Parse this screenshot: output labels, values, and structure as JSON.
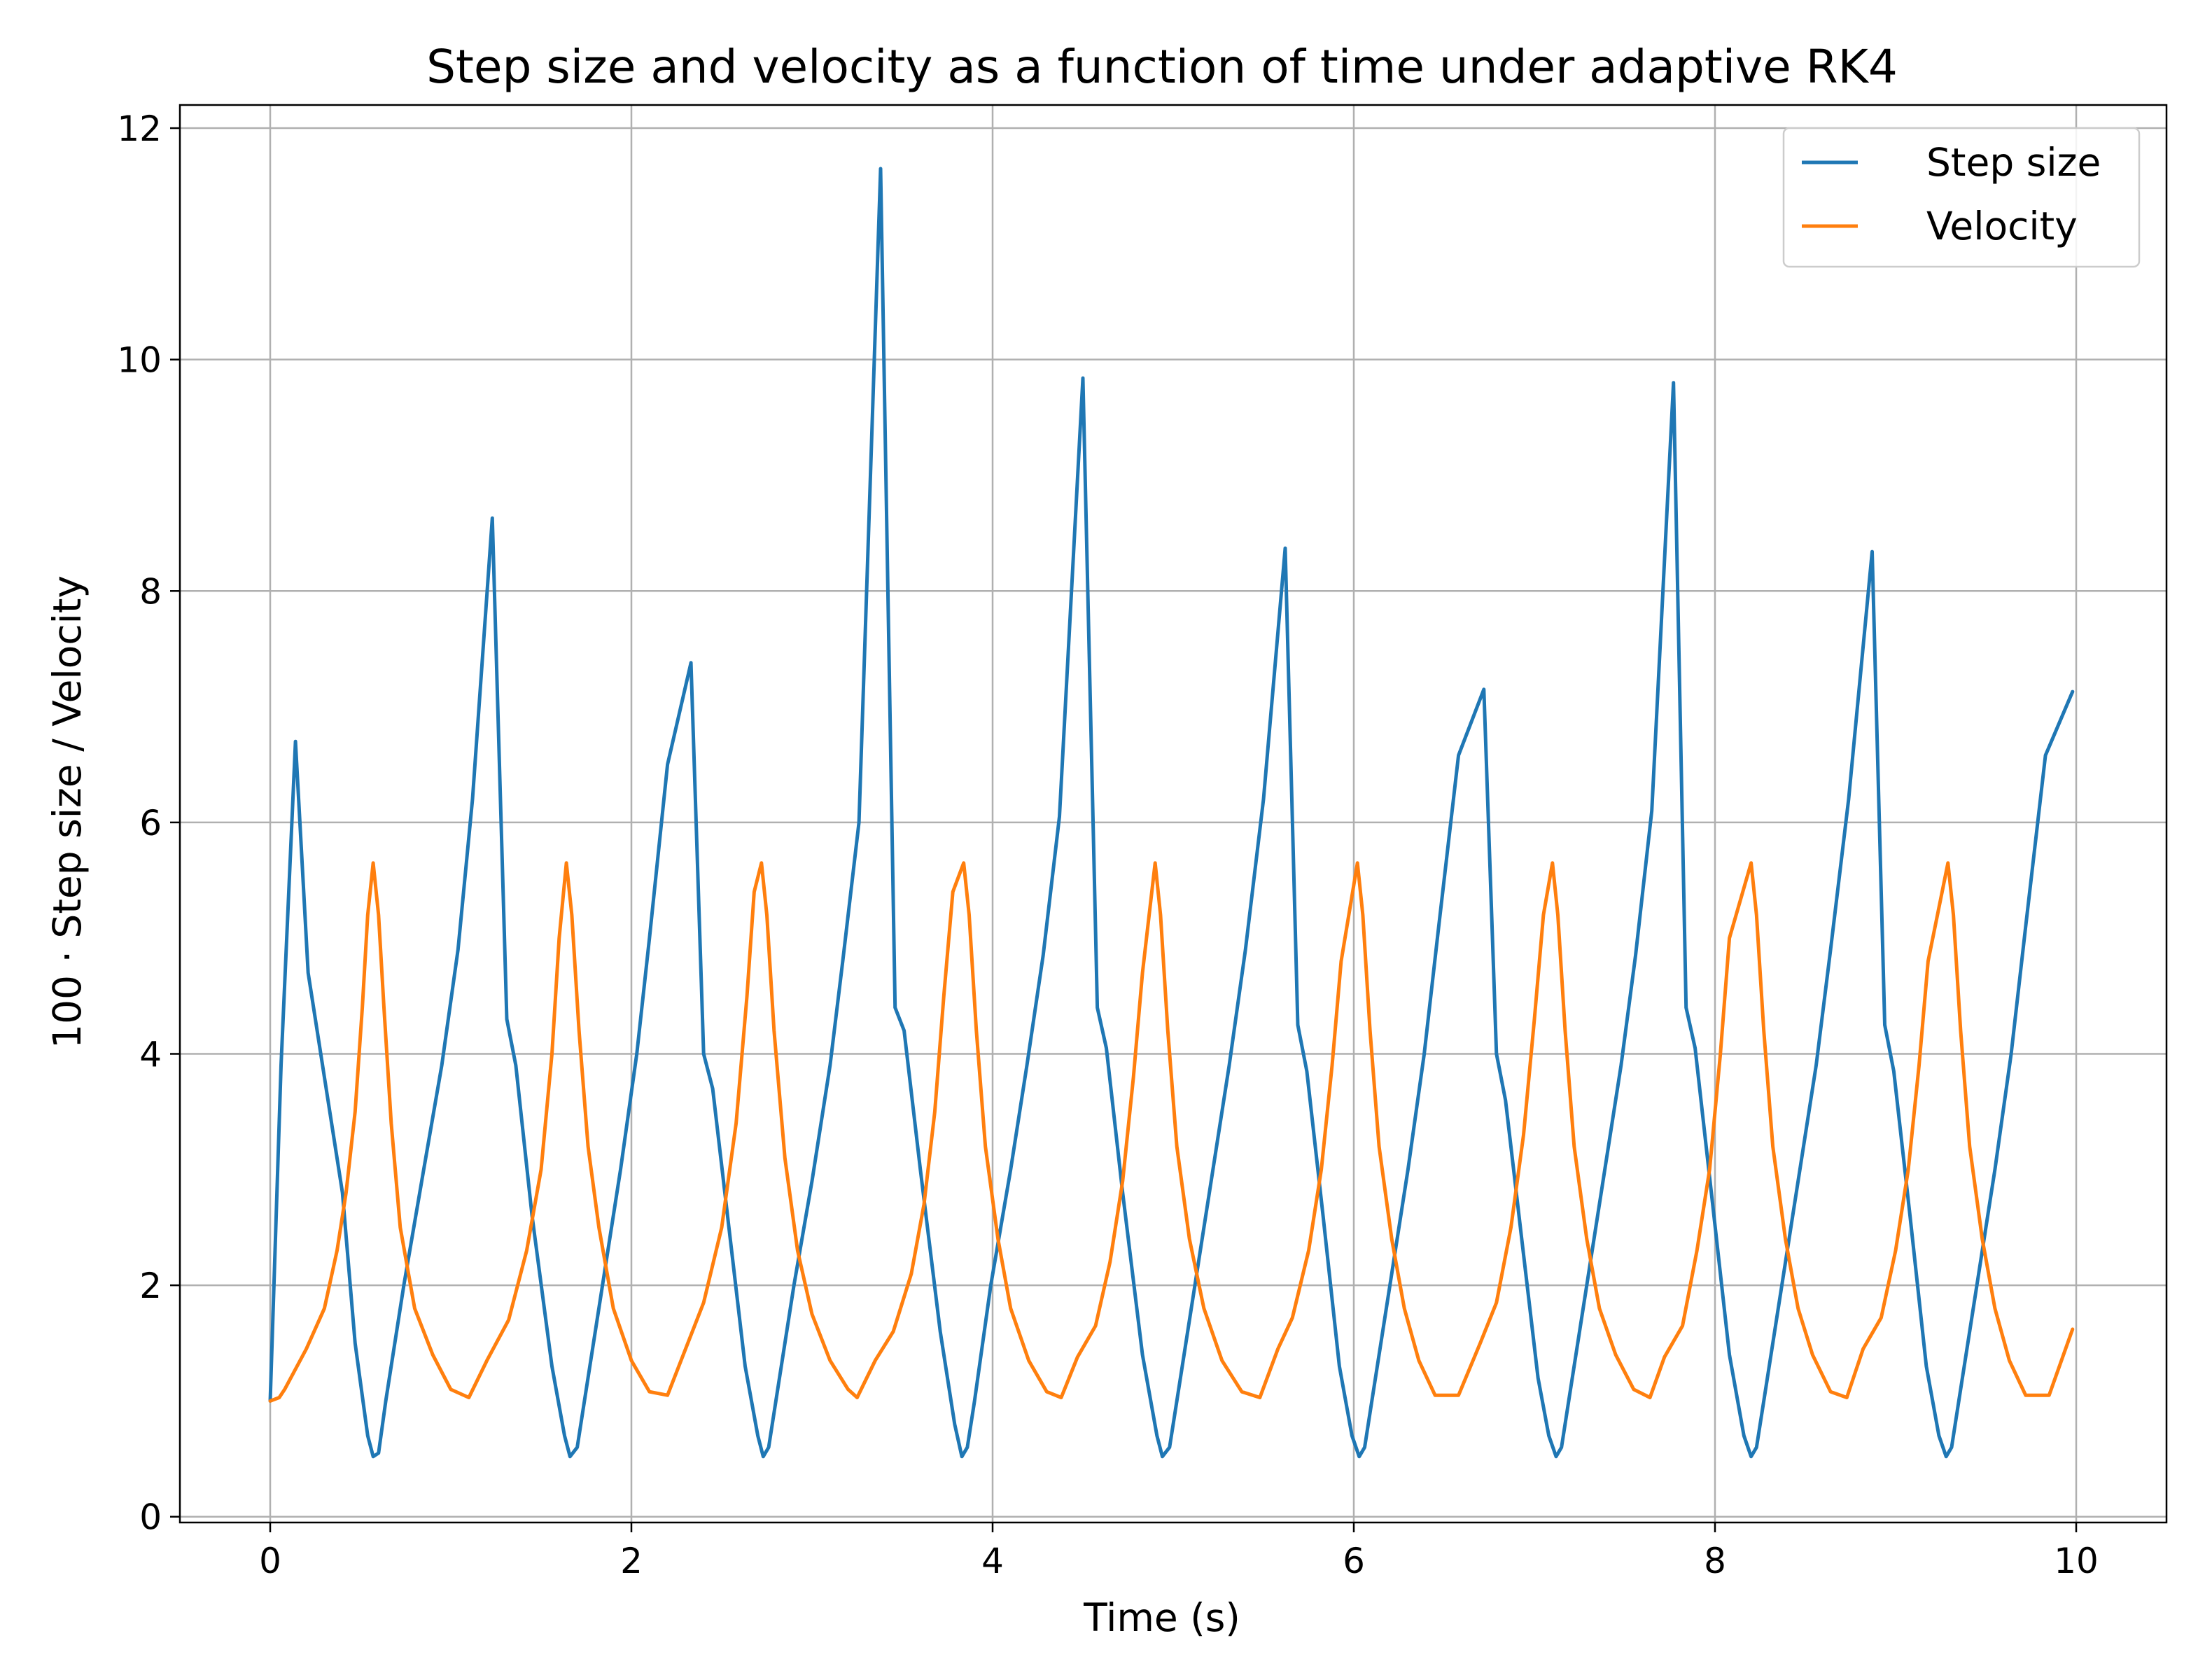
{
  "chart_data": {
    "type": "line",
    "title": "Step size and velocity as a function of time under adaptive RK4",
    "xlabel": "Time (s)",
    "ylabel": "100 · Step size / Velocity",
    "xlim": [
      -0.5,
      10.5
    ],
    "ylim": [
      -0.05,
      12.2
    ],
    "xticks": [
      0,
      2,
      4,
      6,
      8,
      10
    ],
    "yticks": [
      0,
      2,
      4,
      6,
      8,
      10,
      12
    ],
    "grid": true,
    "legend_position": "top-right",
    "series": [
      {
        "name": "Step size",
        "color": "#1f77b4",
        "points": [
          [
            0.0,
            1.0
          ],
          [
            0.06,
            3.9
          ],
          [
            0.14,
            6.7
          ],
          [
            0.21,
            4.7
          ],
          [
            0.3,
            3.8
          ],
          [
            0.4,
            2.8
          ],
          [
            0.47,
            1.5
          ],
          [
            0.54,
            0.7
          ],
          [
            0.57,
            0.52
          ],
          [
            0.6,
            0.55
          ],
          [
            0.64,
            1.0
          ],
          [
            0.74,
            2.0
          ],
          [
            0.85,
            3.0
          ],
          [
            0.95,
            3.9
          ],
          [
            1.04,
            4.9
          ],
          [
            1.12,
            6.2
          ],
          [
            1.23,
            8.63
          ],
          [
            1.31,
            4.3
          ],
          [
            1.36,
            3.9
          ],
          [
            1.45,
            2.6
          ],
          [
            1.56,
            1.3
          ],
          [
            1.63,
            0.7
          ],
          [
            1.66,
            0.52
          ],
          [
            1.7,
            0.6
          ],
          [
            1.74,
            1.0
          ],
          [
            1.84,
            2.0
          ],
          [
            1.94,
            3.0
          ],
          [
            2.03,
            4.0
          ],
          [
            2.1,
            5.0
          ],
          [
            2.2,
            6.5
          ],
          [
            2.33,
            7.38
          ],
          [
            2.4,
            4.0
          ],
          [
            2.45,
            3.7
          ],
          [
            2.54,
            2.5
          ],
          [
            2.63,
            1.3
          ],
          [
            2.7,
            0.7
          ],
          [
            2.73,
            0.52
          ],
          [
            2.76,
            0.6
          ],
          [
            2.8,
            1.0
          ],
          [
            2.9,
            2.0
          ],
          [
            3.0,
            2.9
          ],
          [
            3.1,
            3.9
          ],
          [
            3.17,
            4.8
          ],
          [
            3.26,
            6.0
          ],
          [
            3.38,
            11.65
          ],
          [
            3.46,
            4.4
          ],
          [
            3.51,
            4.2
          ],
          [
            3.6,
            3.0
          ],
          [
            3.71,
            1.6
          ],
          [
            3.79,
            0.8
          ],
          [
            3.83,
            0.52
          ],
          [
            3.86,
            0.6
          ],
          [
            3.9,
            1.0
          ],
          [
            3.99,
            2.0
          ],
          [
            4.1,
            3.0
          ],
          [
            4.19,
            3.9
          ],
          [
            4.28,
            4.85
          ],
          [
            4.37,
            6.05
          ],
          [
            4.5,
            9.84
          ],
          [
            4.58,
            4.4
          ],
          [
            4.63,
            4.05
          ],
          [
            4.72,
            2.8
          ],
          [
            4.83,
            1.4
          ],
          [
            4.91,
            0.7
          ],
          [
            4.94,
            0.52
          ],
          [
            4.98,
            0.6
          ],
          [
            5.02,
            1.0
          ],
          [
            5.12,
            2.0
          ],
          [
            5.22,
            3.0
          ],
          [
            5.31,
            3.9
          ],
          [
            5.4,
            4.9
          ],
          [
            5.5,
            6.2
          ],
          [
            5.62,
            8.37
          ],
          [
            5.69,
            4.25
          ],
          [
            5.74,
            3.85
          ],
          [
            5.83,
            2.6
          ],
          [
            5.92,
            1.3
          ],
          [
            5.99,
            0.7
          ],
          [
            6.03,
            0.52
          ],
          [
            6.06,
            0.6
          ],
          [
            6.1,
            1.0
          ],
          [
            6.2,
            2.0
          ],
          [
            6.3,
            3.0
          ],
          [
            6.39,
            4.0
          ],
          [
            6.47,
            5.1
          ],
          [
            6.58,
            6.58
          ],
          [
            6.72,
            7.15
          ],
          [
            6.79,
            4.0
          ],
          [
            6.84,
            3.6
          ],
          [
            6.93,
            2.4
          ],
          [
            7.02,
            1.2
          ],
          [
            7.08,
            0.7
          ],
          [
            7.12,
            0.52
          ],
          [
            7.15,
            0.6
          ],
          [
            7.19,
            1.0
          ],
          [
            7.29,
            2.0
          ],
          [
            7.39,
            3.0
          ],
          [
            7.48,
            3.9
          ],
          [
            7.56,
            4.85
          ],
          [
            7.65,
            6.1
          ],
          [
            7.77,
            9.8
          ],
          [
            7.84,
            4.4
          ],
          [
            7.89,
            4.05
          ],
          [
            7.98,
            2.8
          ],
          [
            8.08,
            1.4
          ],
          [
            8.16,
            0.7
          ],
          [
            8.2,
            0.52
          ],
          [
            8.23,
            0.6
          ],
          [
            8.27,
            1.0
          ],
          [
            8.37,
            2.0
          ],
          [
            8.47,
            3.0
          ],
          [
            8.56,
            3.9
          ],
          [
            8.64,
            4.9
          ],
          [
            8.74,
            6.2
          ],
          [
            8.87,
            8.34
          ],
          [
            8.94,
            4.25
          ],
          [
            8.99,
            3.85
          ],
          [
            9.08,
            2.6
          ],
          [
            9.17,
            1.3
          ],
          [
            9.24,
            0.7
          ],
          [
            9.28,
            0.52
          ],
          [
            9.31,
            0.6
          ],
          [
            9.35,
            1.0
          ],
          [
            9.45,
            2.0
          ],
          [
            9.55,
            3.0
          ],
          [
            9.64,
            4.0
          ],
          [
            9.72,
            5.1
          ],
          [
            9.83,
            6.58
          ],
          [
            9.98,
            7.13
          ]
        ]
      },
      {
        "name": "Velocity",
        "color": "#ff7f0e",
        "points": [
          [
            0.0,
            1.0
          ],
          [
            0.05,
            1.03
          ],
          [
            0.08,
            1.1
          ],
          [
            0.2,
            1.45
          ],
          [
            0.3,
            1.8
          ],
          [
            0.37,
            2.3
          ],
          [
            0.42,
            2.8
          ],
          [
            0.47,
            3.5
          ],
          [
            0.51,
            4.4
          ],
          [
            0.54,
            5.2
          ],
          [
            0.57,
            5.65
          ],
          [
            0.6,
            5.2
          ],
          [
            0.63,
            4.4
          ],
          [
            0.67,
            3.4
          ],
          [
            0.72,
            2.5
          ],
          [
            0.8,
            1.8
          ],
          [
            0.9,
            1.4
          ],
          [
            1.0,
            1.1
          ],
          [
            1.1,
            1.03
          ],
          [
            1.2,
            1.35
          ],
          [
            1.32,
            1.7
          ],
          [
            1.42,
            2.3
          ],
          [
            1.5,
            3.0
          ],
          [
            1.56,
            4.0
          ],
          [
            1.6,
            5.0
          ],
          [
            1.64,
            5.65
          ],
          [
            1.67,
            5.2
          ],
          [
            1.71,
            4.2
          ],
          [
            1.76,
            3.2
          ],
          [
            1.82,
            2.5
          ],
          [
            1.9,
            1.8
          ],
          [
            2.0,
            1.35
          ],
          [
            2.1,
            1.08
          ],
          [
            2.2,
            1.05
          ],
          [
            2.3,
            1.45
          ],
          [
            2.4,
            1.85
          ],
          [
            2.5,
            2.5
          ],
          [
            2.58,
            3.4
          ],
          [
            2.64,
            4.5
          ],
          [
            2.68,
            5.4
          ],
          [
            2.72,
            5.65
          ],
          [
            2.75,
            5.2
          ],
          [
            2.79,
            4.2
          ],
          [
            2.85,
            3.1
          ],
          [
            2.92,
            2.3
          ],
          [
            3.0,
            1.75
          ],
          [
            3.1,
            1.35
          ],
          [
            3.2,
            1.1
          ],
          [
            3.25,
            1.03
          ],
          [
            3.35,
            1.35
          ],
          [
            3.45,
            1.6
          ],
          [
            3.55,
            2.1
          ],
          [
            3.62,
            2.7
          ],
          [
            3.68,
            3.5
          ],
          [
            3.73,
            4.5
          ],
          [
            3.78,
            5.4
          ],
          [
            3.84,
            5.65
          ],
          [
            3.87,
            5.2
          ],
          [
            3.91,
            4.2
          ],
          [
            3.96,
            3.2
          ],
          [
            4.03,
            2.4
          ],
          [
            4.1,
            1.8
          ],
          [
            4.2,
            1.35
          ],
          [
            4.3,
            1.08
          ],
          [
            4.38,
            1.03
          ],
          [
            4.47,
            1.38
          ],
          [
            4.57,
            1.65
          ],
          [
            4.65,
            2.2
          ],
          [
            4.72,
            2.9
          ],
          [
            4.78,
            3.8
          ],
          [
            4.83,
            4.7
          ],
          [
            4.9,
            5.65
          ],
          [
            4.93,
            5.2
          ],
          [
            4.97,
            4.2
          ],
          [
            5.02,
            3.2
          ],
          [
            5.09,
            2.4
          ],
          [
            5.17,
            1.8
          ],
          [
            5.27,
            1.35
          ],
          [
            5.38,
            1.08
          ],
          [
            5.48,
            1.03
          ],
          [
            5.58,
            1.45
          ],
          [
            5.66,
            1.72
          ],
          [
            5.75,
            2.3
          ],
          [
            5.82,
            3.0
          ],
          [
            5.88,
            3.9
          ],
          [
            5.93,
            4.8
          ],
          [
            6.02,
            5.65
          ],
          [
            6.05,
            5.2
          ],
          [
            6.09,
            4.2
          ],
          [
            6.14,
            3.2
          ],
          [
            6.21,
            2.4
          ],
          [
            6.28,
            1.8
          ],
          [
            6.36,
            1.35
          ],
          [
            6.45,
            1.05
          ],
          [
            6.58,
            1.05
          ],
          [
            6.7,
            1.5
          ],
          [
            6.79,
            1.85
          ],
          [
            6.87,
            2.5
          ],
          [
            6.94,
            3.3
          ],
          [
            7.0,
            4.3
          ],
          [
            7.05,
            5.2
          ],
          [
            7.1,
            5.65
          ],
          [
            7.13,
            5.2
          ],
          [
            7.17,
            4.2
          ],
          [
            7.22,
            3.2
          ],
          [
            7.29,
            2.4
          ],
          [
            7.36,
            1.8
          ],
          [
            7.45,
            1.4
          ],
          [
            7.55,
            1.1
          ],
          [
            7.64,
            1.03
          ],
          [
            7.72,
            1.38
          ],
          [
            7.82,
            1.65
          ],
          [
            7.9,
            2.3
          ],
          [
            7.97,
            3.0
          ],
          [
            8.03,
            4.0
          ],
          [
            8.08,
            5.0
          ],
          [
            8.2,
            5.65
          ],
          [
            8.23,
            5.2
          ],
          [
            8.27,
            4.2
          ],
          [
            8.32,
            3.2
          ],
          [
            8.39,
            2.4
          ],
          [
            8.46,
            1.8
          ],
          [
            8.54,
            1.4
          ],
          [
            8.64,
            1.08
          ],
          [
            8.73,
            1.03
          ],
          [
            8.82,
            1.45
          ],
          [
            8.92,
            1.72
          ],
          [
            9.0,
            2.3
          ],
          [
            9.07,
            3.0
          ],
          [
            9.13,
            3.9
          ],
          [
            9.18,
            4.8
          ],
          [
            9.29,
            5.65
          ],
          [
            9.32,
            5.2
          ],
          [
            9.36,
            4.2
          ],
          [
            9.41,
            3.2
          ],
          [
            9.48,
            2.4
          ],
          [
            9.55,
            1.8
          ],
          [
            9.63,
            1.35
          ],
          [
            9.72,
            1.05
          ],
          [
            9.85,
            1.05
          ],
          [
            9.98,
            1.62
          ]
        ]
      }
    ]
  }
}
